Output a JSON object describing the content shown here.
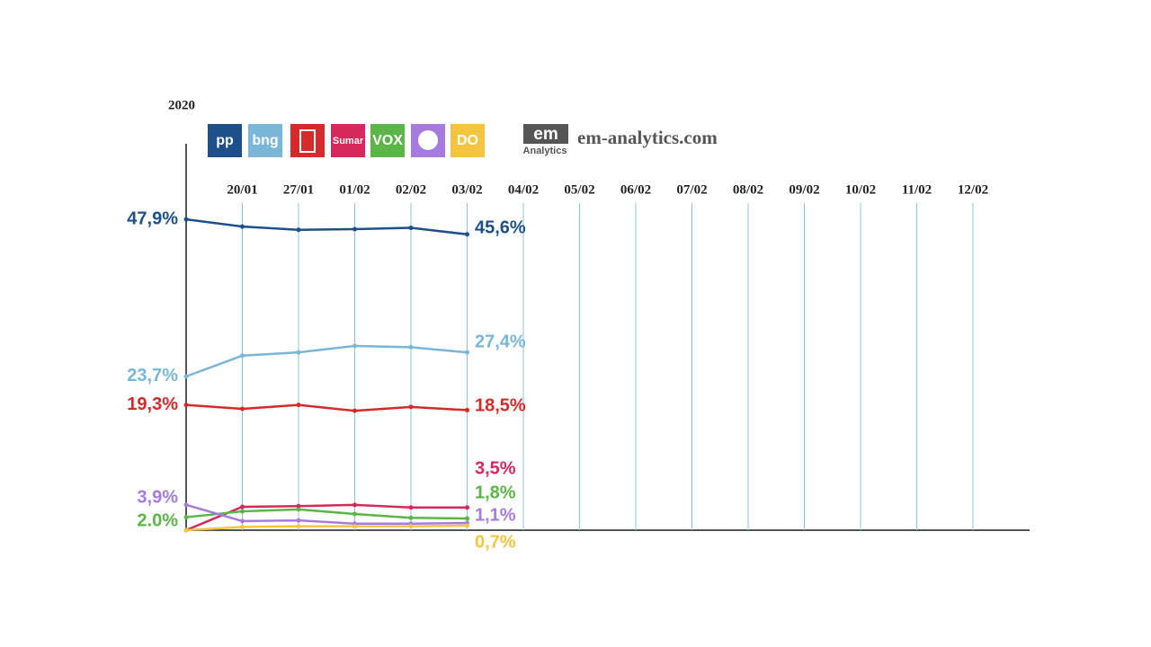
{
  "chart_data": {
    "type": "line",
    "categories": [
      "2020",
      "20/01",
      "27/01",
      "01/02",
      "02/02",
      "03/02",
      "04/02",
      "05/02",
      "06/02",
      "07/02",
      "08/02",
      "09/02",
      "10/02",
      "11/02",
      "12/02"
    ],
    "ylim": [
      0,
      50
    ],
    "grid": true,
    "brand": {
      "logo": "em",
      "sub": "Analytics",
      "site": "em-analytics.com"
    },
    "series": [
      {
        "name": "pp",
        "color": "#1d4f8a",
        "values": [
          47.9,
          46.8,
          46.3,
          46.4,
          46.6,
          45.6,
          null,
          null,
          null,
          null,
          null,
          null,
          null,
          null,
          null
        ],
        "value_labels": [
          "47,9%",
          null,
          null,
          null,
          null,
          "45,6%",
          null,
          null,
          null,
          null,
          null,
          null,
          null,
          null,
          null
        ]
      },
      {
        "name": "bng",
        "color": "#7ab6d8",
        "values": [
          23.7,
          26.9,
          27.4,
          28.4,
          28.2,
          27.4,
          null,
          null,
          null,
          null,
          null,
          null,
          null,
          null,
          null
        ],
        "value_labels": [
          "23,7%",
          null,
          null,
          null,
          null,
          "27,4%",
          null,
          null,
          null,
          null,
          null,
          null,
          null,
          null,
          null
        ]
      },
      {
        "name": null,
        "color": "#d62a2a",
        "values": [
          19.3,
          18.7,
          19.3,
          18.4,
          19.0,
          18.5,
          null,
          null,
          null,
          null,
          null,
          null,
          null,
          null,
          null
        ],
        "value_labels": [
          "19,3%",
          null,
          null,
          null,
          null,
          "18,5%",
          null,
          null,
          null,
          null,
          null,
          null,
          null,
          null,
          null
        ]
      },
      {
        "name": "Sumar",
        "color": "#d6285a",
        "values": [
          0,
          3.6,
          3.7,
          3.9,
          3.5,
          3.5,
          null,
          null,
          null,
          null,
          null,
          null,
          null,
          null,
          null
        ],
        "value_labels": [
          null,
          null,
          null,
          null,
          null,
          "3,5%",
          null,
          null,
          null,
          null,
          null,
          null,
          null,
          null,
          null
        ]
      },
      {
        "name": "VOX",
        "color": "#5bb547",
        "values": [
          2.0,
          2.9,
          3.2,
          2.5,
          1.9,
          1.8,
          null,
          null,
          null,
          null,
          null,
          null,
          null,
          null,
          null
        ],
        "value_labels": [
          "2.0%",
          null,
          null,
          null,
          null,
          "1,8%",
          null,
          null,
          null,
          null,
          null,
          null,
          null,
          null,
          null
        ]
      },
      {
        "name": null,
        "color": "#a57be0",
        "values": [
          3.9,
          1.4,
          1.5,
          1.0,
          1.0,
          1.1,
          null,
          null,
          null,
          null,
          null,
          null,
          null,
          null,
          null
        ],
        "value_labels": [
          "3,9%",
          null,
          null,
          null,
          null,
          "1,1%",
          null,
          null,
          null,
          null,
          null,
          null,
          null,
          null,
          null
        ]
      },
      {
        "name": "DO",
        "color": "#f5c542",
        "values": [
          0,
          0.5,
          0.6,
          0.6,
          0.6,
          0.7,
          null,
          null,
          null,
          null,
          null,
          null,
          null,
          null,
          null
        ],
        "value_labels": [
          null,
          null,
          null,
          null,
          null,
          "0,7%",
          null,
          null,
          null,
          null,
          null,
          null,
          null,
          null,
          null
        ]
      }
    ]
  }
}
